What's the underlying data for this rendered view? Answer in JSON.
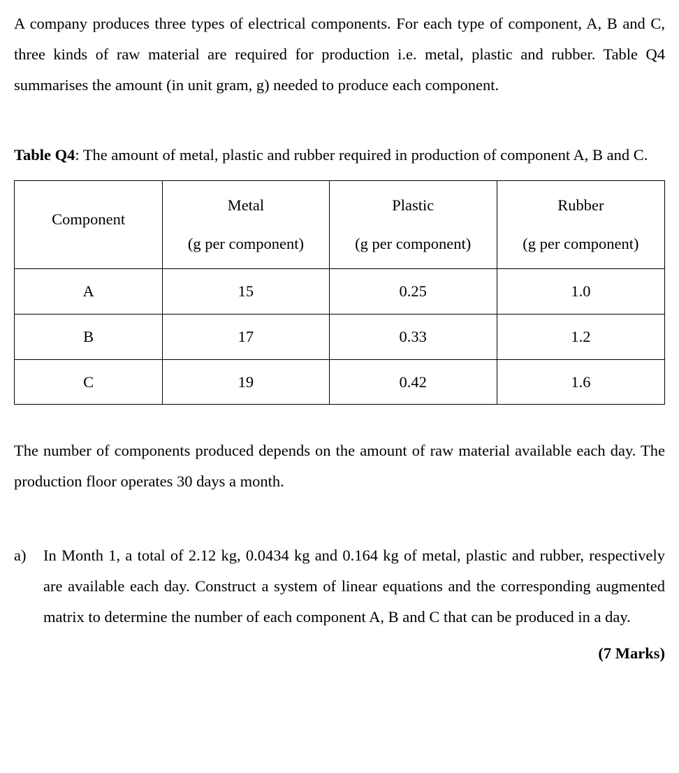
{
  "intro": {
    "text": "A company produces three types of electrical components. For each type of component, A, B and C, three kinds of raw material are required for production i.e. metal, plastic and rubber. Table Q4 summarises the amount (in unit gram, g) needed to produce each component."
  },
  "table_caption": {
    "label": "Table Q4",
    "sep": ": ",
    "text": "The amount of metal, plastic and rubber required in production of component A, B and C."
  },
  "table": {
    "type": "table",
    "columns": [
      {
        "header": "Component",
        "sub": ""
      },
      {
        "header": "Metal",
        "sub": "(g per component)"
      },
      {
        "header": "Plastic",
        "sub": "(g per component)"
      },
      {
        "header": "Rubber",
        "sub": "(g per component)"
      }
    ],
    "rows": [
      {
        "c0": "A",
        "c1": "15",
        "c2": "0.25",
        "c3": "1.0"
      },
      {
        "c0": "B",
        "c1": "17",
        "c2": "0.33",
        "c3": "1.2"
      },
      {
        "c0": "C",
        "c1": "19",
        "c2": "0.42",
        "c3": "1.6"
      }
    ],
    "border_color": "#000000",
    "background_color": "#ffffff",
    "col_widths_pct": [
      22.8,
      25.6,
      25.8,
      25.8
    ]
  },
  "post": {
    "text": "The number of components produced depends on the amount of raw material available each day. The production floor operates 30 days a month."
  },
  "question": {
    "marker": "a)",
    "text": "In Month 1, a total of 2.12 kg, 0.0434 kg and 0.164 kg of metal, plastic and rubber, respectively are available each day. Construct a system of linear equations and the corresponding augmented matrix to determine the number of each component A, B and C that can be produced in a day.",
    "marks": "(7 Marks)"
  },
  "styles": {
    "font_family": "Century Schoolbook / serif",
    "body_fontsize_pt": 17,
    "text_color": "#000000",
    "background_color": "#ffffff",
    "line_height": 1.95
  }
}
